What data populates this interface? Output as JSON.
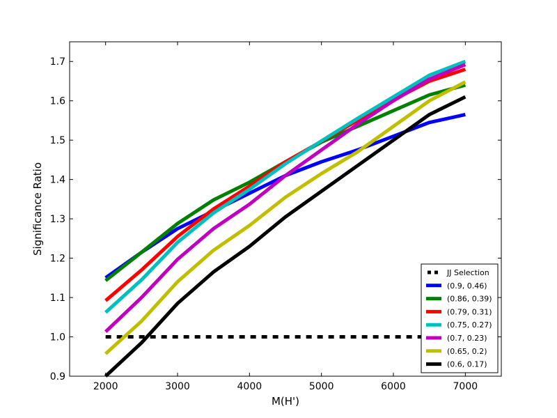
{
  "chart_data": {
    "type": "line",
    "title": "",
    "xlabel": "M(H')",
    "ylabel": "Significance Ratio",
    "xlim": [
      1500,
      7500
    ],
    "ylim": [
      0.9,
      1.75
    ],
    "xticks": [
      2000,
      3000,
      4000,
      5000,
      6000,
      7000
    ],
    "yticks": [
      0.9,
      1.0,
      1.1,
      1.2,
      1.3,
      1.4,
      1.5,
      1.6,
      1.7
    ],
    "x": [
      2000,
      2500,
      3000,
      3500,
      4000,
      4500,
      5000,
      5500,
      6000,
      6500,
      7000
    ],
    "grid": false,
    "legend_position": "lower-right",
    "series": [
      {
        "name": "JJ Selection",
        "color": "#000000",
        "style": "dashed",
        "values": [
          1.0,
          1.0,
          1.0,
          1.0,
          1.0,
          1.0,
          1.0,
          1.0,
          1.0,
          1.0,
          1.0
        ]
      },
      {
        "name": "(0.9, 0.46)",
        "color": "#0000ff",
        "style": "solid",
        "values": [
          1.15,
          1.215,
          1.275,
          1.32,
          1.365,
          1.41,
          1.445,
          1.475,
          1.51,
          1.545,
          1.565
        ]
      },
      {
        "name": "(0.86, 0.39)",
        "color": "#008000",
        "style": "solid",
        "values": [
          1.143,
          1.215,
          1.288,
          1.348,
          1.393,
          1.445,
          1.495,
          1.535,
          1.575,
          1.615,
          1.64
        ]
      },
      {
        "name": "(0.79, 0.31)",
        "color": "#ff0000",
        "style": "solid",
        "values": [
          1.092,
          1.17,
          1.255,
          1.325,
          1.383,
          1.445,
          1.497,
          1.55,
          1.602,
          1.65,
          1.68
        ]
      },
      {
        "name": "(0.75, 0.27)",
        "color": "#00bfbf",
        "style": "solid",
        "values": [
          1.062,
          1.145,
          1.24,
          1.315,
          1.375,
          1.44,
          1.498,
          1.555,
          1.61,
          1.665,
          1.7
        ]
      },
      {
        "name": "(0.7, 0.23)",
        "color": "#bf00bf",
        "style": "solid",
        "values": [
          1.013,
          1.1,
          1.197,
          1.275,
          1.337,
          1.41,
          1.475,
          1.54,
          1.6,
          1.655,
          1.692
        ]
      },
      {
        "name": "(0.65, 0.2)",
        "color": "#bfbf00",
        "style": "solid",
        "values": [
          0.957,
          1.04,
          1.14,
          1.22,
          1.283,
          1.355,
          1.415,
          1.47,
          1.535,
          1.6,
          1.648
        ]
      },
      {
        "name": "(0.6, 0.17)",
        "color": "#000000",
        "style": "solid",
        "values": [
          0.9,
          0.985,
          1.085,
          1.165,
          1.23,
          1.305,
          1.37,
          1.435,
          1.5,
          1.565,
          1.61
        ]
      }
    ]
  }
}
